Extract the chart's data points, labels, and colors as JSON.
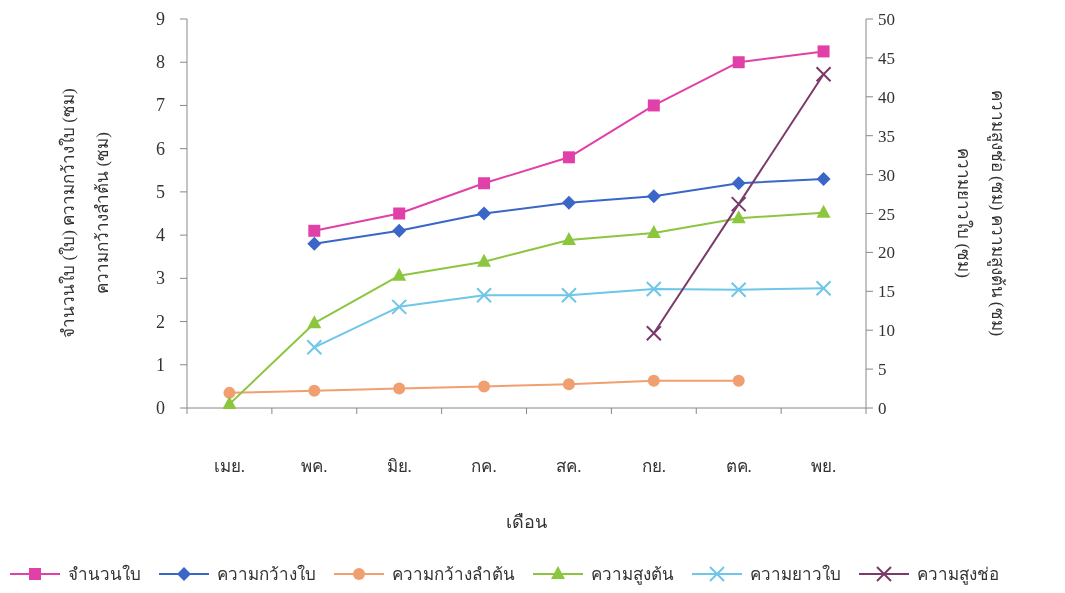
{
  "chart_data": {
    "type": "line",
    "categories": [
      "เมย.",
      "พค.",
      "มิย.",
      "กค.",
      "สค.",
      "กย.",
      "ตค.",
      "พย."
    ],
    "xlabel": "เดือน",
    "ylabel": "จำนวนใบ (ใบ)  ความกว้างใบ (ซม)\nความกว้างลำต้น (ซม)",
    "y2label": "ความสูงช่อ (ซม) ความสูงต้น (ซม)\nความยาวใบ (ซม)",
    "ylim": [
      0,
      9
    ],
    "yticks": [
      0,
      1,
      2,
      3,
      4,
      5,
      6,
      7,
      8,
      9
    ],
    "y2lim": [
      0,
      50
    ],
    "y2ticks": [
      0,
      5,
      10,
      15,
      20,
      25,
      30,
      35,
      40,
      45,
      50
    ],
    "legend": "bottom",
    "series": [
      {
        "name": "จำนวนใบ",
        "color": "#e040a8",
        "marker": "square",
        "values": [
          null,
          4.1,
          4.5,
          5.2,
          5.8,
          7.0,
          8.0,
          8.25
        ]
      },
      {
        "name": "ความกว้างใบ",
        "color": "#3a66c8",
        "marker": "diamond",
        "values": [
          null,
          3.8,
          4.1,
          4.5,
          4.75,
          4.9,
          5.2,
          5.3
        ]
      },
      {
        "name": "ความกว้างลำต้น",
        "color": "#f0a070",
        "marker": "circle",
        "values": [
          0.35,
          0.4,
          0.45,
          0.5,
          0.55,
          0.63,
          0.63,
          null
        ]
      },
      {
        "name": "ความสูงต้น",
        "color": "#8cc63f",
        "marker": "triangle",
        "axis": "y2",
        "values": [
          0.5,
          10.9,
          17.0,
          18.8,
          21.6,
          22.5,
          24.4,
          25.1
        ]
      },
      {
        "name": "ความยาวใบ",
        "color": "#6ec6e8",
        "marker": "cross",
        "axis": "y2",
        "values": [
          null,
          7.8,
          13.0,
          14.5,
          14.5,
          15.3,
          15.2,
          15.4
        ]
      },
      {
        "name": "ความสูงช่อ",
        "color": "#7a3a6a",
        "marker": "cross",
        "axis": "y2",
        "values": [
          null,
          null,
          null,
          null,
          null,
          9.6,
          26.2,
          42.9
        ]
      }
    ]
  }
}
